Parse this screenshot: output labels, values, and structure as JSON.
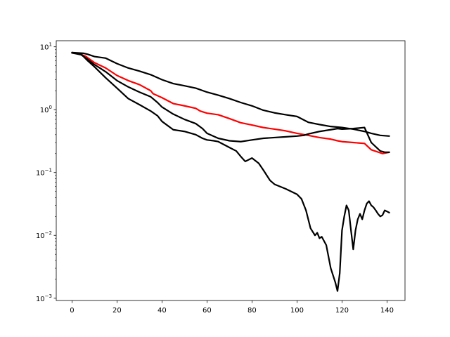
{
  "chart_data": {
    "type": "line",
    "title": "",
    "xlabel": "",
    "ylabel": "",
    "xlim": [
      -7,
      148
    ],
    "ylim": [
      0.00092,
      12.5
    ],
    "yscale": "log",
    "grid": false,
    "legend": "none",
    "x_ticks": [
      0,
      20,
      40,
      60,
      80,
      100,
      120,
      140
    ],
    "x_tick_labels": [
      "0",
      "20",
      "40",
      "60",
      "80",
      "100",
      "120",
      "140"
    ],
    "y_ticks": [
      0.001,
      0.01,
      0.1,
      1,
      10
    ],
    "y_tick_labels": [
      "10",
      "10",
      "10",
      "10",
      "10"
    ],
    "y_tick_exponents": [
      "−3",
      "−2",
      "−1",
      "0",
      "1"
    ],
    "series": [
      {
        "color": "#000000",
        "x": [
          0,
          5,
          7,
          10,
          15,
          20,
          25,
          30,
          35,
          40,
          45,
          50,
          55,
          60,
          65,
          70,
          75,
          80,
          85,
          90,
          95,
          100,
          105,
          110,
          115,
          120,
          125,
          130,
          133,
          137,
          141
        ],
        "y": [
          8.1,
          7.9,
          7.6,
          7.0,
          6.6,
          5.4,
          4.6,
          4.1,
          3.6,
          3.0,
          2.6,
          2.4,
          2.2,
          1.9,
          1.7,
          1.5,
          1.3,
          1.15,
          0.98,
          0.89,
          0.83,
          0.78,
          0.63,
          0.58,
          0.54,
          0.52,
          0.49,
          0.45,
          0.42,
          0.39,
          0.38
        ]
      },
      {
        "color": "#ff0000",
        "x": [
          0,
          3,
          6,
          10,
          15,
          20,
          25,
          30,
          35,
          36,
          40,
          45,
          50,
          55,
          57,
          60,
          65,
          70,
          75,
          80,
          85,
          90,
          95,
          100,
          105,
          110,
          115,
          118,
          120,
          125,
          130,
          133,
          138,
          141
        ],
        "y": [
          8.0,
          7.8,
          7.1,
          5.6,
          4.6,
          3.5,
          2.9,
          2.5,
          2.0,
          1.8,
          1.55,
          1.25,
          1.15,
          1.05,
          0.95,
          0.88,
          0.83,
          0.72,
          0.62,
          0.57,
          0.52,
          0.49,
          0.46,
          0.42,
          0.39,
          0.36,
          0.34,
          0.32,
          0.31,
          0.3,
          0.29,
          0.23,
          0.2,
          0.21
        ]
      },
      {
        "color": "#000000",
        "x": [
          0,
          4,
          7,
          10,
          12,
          15,
          20,
          25,
          30,
          35,
          38,
          40,
          45,
          50,
          55,
          58,
          60,
          65,
          70,
          75,
          80,
          85,
          90,
          95,
          100,
          103,
          105,
          110,
          115,
          118,
          120,
          125,
          130,
          133,
          137,
          139,
          141
        ],
        "y": [
          8.0,
          7.5,
          6.3,
          5.2,
          4.7,
          4.0,
          2.9,
          2.3,
          1.9,
          1.6,
          1.3,
          1.1,
          0.85,
          0.7,
          0.6,
          0.5,
          0.42,
          0.35,
          0.32,
          0.31,
          0.33,
          0.35,
          0.36,
          0.37,
          0.38,
          0.39,
          0.41,
          0.45,
          0.48,
          0.5,
          0.49,
          0.5,
          0.52,
          0.3,
          0.22,
          0.21,
          0.21
        ]
      },
      {
        "color": "#000000",
        "x": [
          0,
          4,
          7,
          10,
          15,
          20,
          25,
          30,
          35,
          38,
          40,
          45,
          50,
          55,
          58,
          60,
          63,
          65,
          70,
          73,
          75,
          77,
          80,
          83,
          85,
          88,
          90,
          95,
          100,
          102,
          104,
          106,
          108,
          109,
          110,
          111,
          113,
          115,
          117,
          118,
          119,
          120,
          121,
          122,
          123,
          124,
          125,
          126,
          127,
          128,
          129,
          130,
          131,
          132,
          133,
          134,
          135,
          136,
          137,
          138,
          139,
          140,
          141
        ],
        "y": [
          8.1,
          7.7,
          6.0,
          4.8,
          3.2,
          2.2,
          1.5,
          1.2,
          0.95,
          0.8,
          0.65,
          0.48,
          0.45,
          0.4,
          0.35,
          0.33,
          0.32,
          0.31,
          0.25,
          0.22,
          0.18,
          0.15,
          0.17,
          0.14,
          0.11,
          0.075,
          0.065,
          0.055,
          0.045,
          0.038,
          0.025,
          0.013,
          0.01,
          0.011,
          0.009,
          0.0095,
          0.007,
          0.003,
          0.0018,
          0.0013,
          0.0025,
          0.012,
          0.02,
          0.03,
          0.025,
          0.012,
          0.006,
          0.012,
          0.018,
          0.022,
          0.018,
          0.025,
          0.032,
          0.035,
          0.03,
          0.028,
          0.025,
          0.022,
          0.02,
          0.021,
          0.025,
          0.024,
          0.023
        ]
      }
    ]
  }
}
